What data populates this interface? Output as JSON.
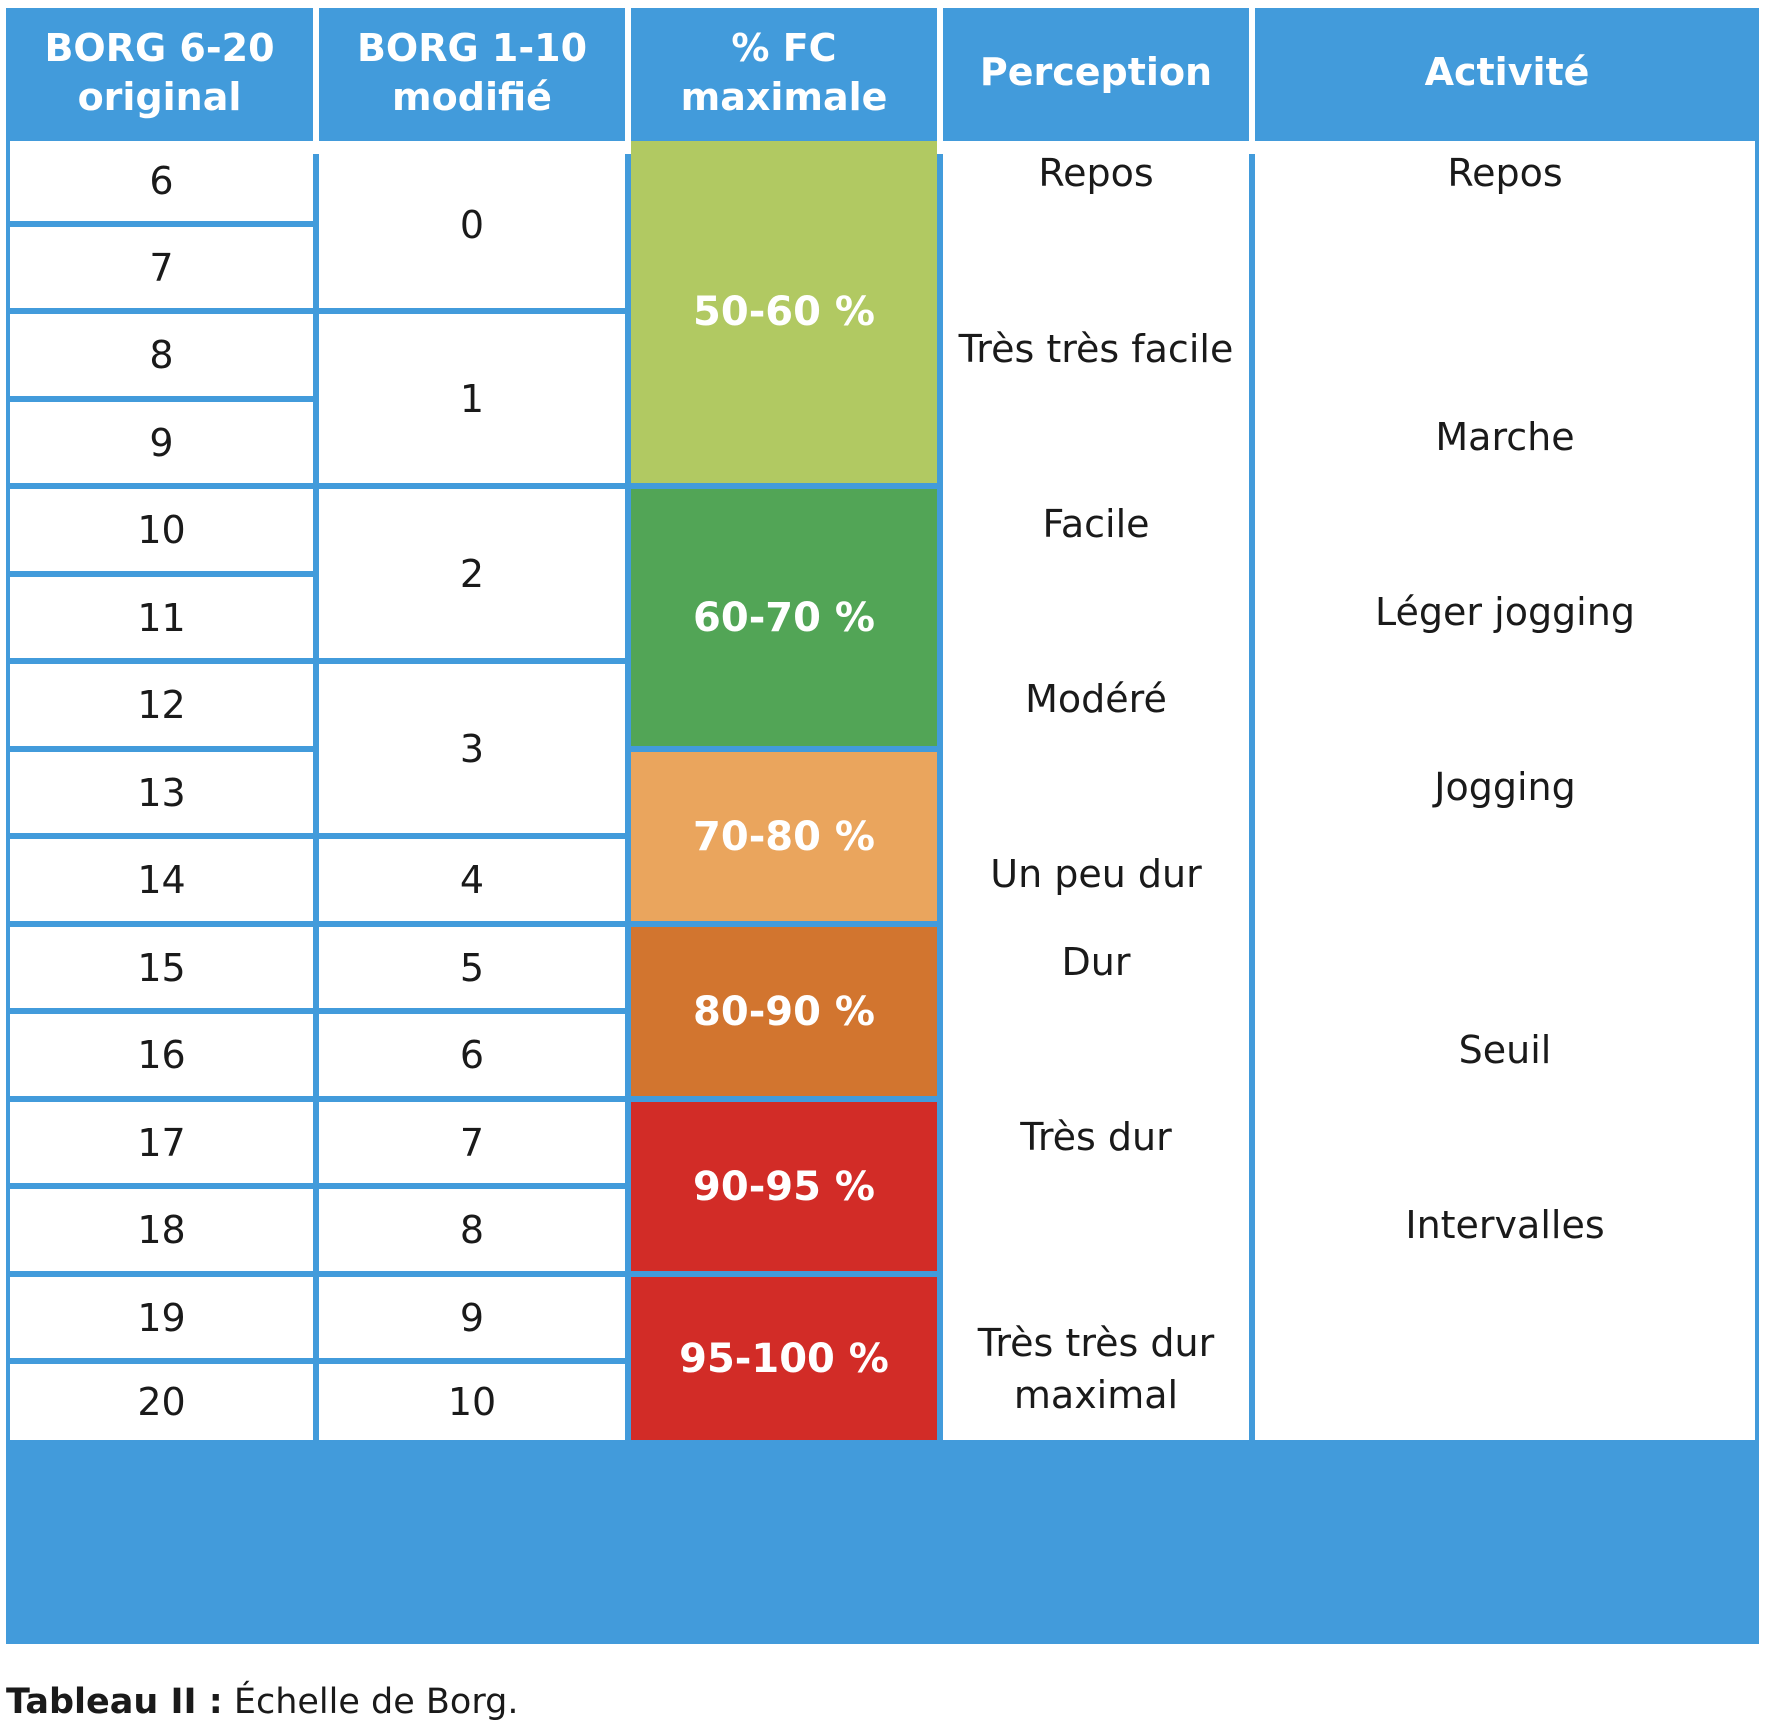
{
  "headers": {
    "borg_original": "BORG 6-20\noriginal",
    "borg_modified": "BORG 1-10\nmodifié",
    "fc_max": "% FC\nmaximale",
    "perception": "Perception",
    "activity": "Activité"
  },
  "borg_original_values": [
    "6",
    "7",
    "8",
    "9",
    "10",
    "11",
    "12",
    "13",
    "14",
    "15",
    "16",
    "17",
    "18",
    "19",
    "20"
  ],
  "borg_modified_values": [
    "0",
    "1",
    "2",
    "3",
    "4",
    "5",
    "6",
    "7",
    "8",
    "9",
    "10"
  ],
  "fc_zones": [
    {
      "label": "50-60 %",
      "color": "#b1c962"
    },
    {
      "label": "60-70 %",
      "color": "#52a556"
    },
    {
      "label": "70-80 %",
      "color": "#eaa55d"
    },
    {
      "label": "80-90 %",
      "color": "#d2752f"
    },
    {
      "label": "90-95 %",
      "color": "#d22c27"
    },
    {
      "label": "95-100 %",
      "color": "#d22c27"
    }
  ],
  "perception": [
    "Repos",
    "Très très facile",
    "Facile",
    "Modéré",
    "Un peu dur",
    "Dur",
    "Très dur",
    "Très très dur\nmaximal"
  ],
  "activity": [
    "Repos",
    "Marche",
    "Léger jogging",
    "Jogging",
    "Seuil",
    "Intervalles"
  ],
  "caption": {
    "label": "Tableau II :",
    "text": " Échelle de Borg."
  }
}
